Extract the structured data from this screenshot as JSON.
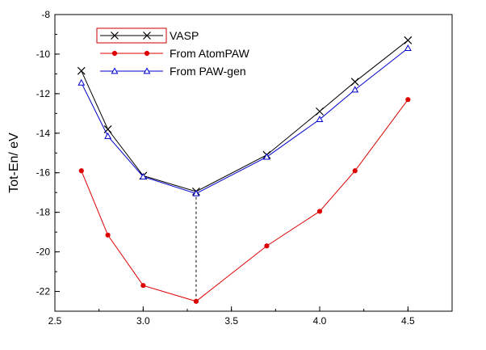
{
  "chart_data": {
    "type": "line",
    "title": "",
    "xlabel": "",
    "ylabel": "Tot-En/ eV",
    "xlim": [
      2.5,
      4.75
    ],
    "ylim": [
      -23,
      -8
    ],
    "xticks": [
      2.5,
      3.0,
      3.5,
      4.0,
      4.5
    ],
    "xtick_labels": [
      "2.5",
      "3.0",
      "3.5",
      "4.0",
      "4.5"
    ],
    "yticks": [
      -22,
      -20,
      -18,
      -16,
      -14,
      -12,
      -10,
      -8
    ],
    "ytick_labels": [
      "-22",
      "-20",
      "-18",
      "-16",
      "-14",
      "-12",
      "-10",
      "-8"
    ],
    "grid": false,
    "legend_position": "top-left",
    "series": [
      {
        "name": "VASP",
        "color": "#000000",
        "marker": "x",
        "x": [
          2.65,
          2.8,
          3.0,
          3.3,
          3.7,
          4.0,
          4.2,
          4.5
        ],
        "y": [
          -10.85,
          -13.8,
          -16.15,
          -16.95,
          -15.1,
          -12.9,
          -11.4,
          -9.3
        ]
      },
      {
        "name": "From AtomPAW",
        "color": "#dd0000",
        "marker": "circle",
        "x": [
          2.65,
          2.8,
          3.0,
          3.3,
          3.7,
          4.0,
          4.2,
          4.5
        ],
        "y": [
          -15.9,
          -19.15,
          -21.7,
          -22.5,
          -19.7,
          -17.95,
          -15.9,
          -12.3
        ]
      },
      {
        "name": "From PAW-gen",
        "color": "#0000cc",
        "marker": "triangle-open",
        "x": [
          2.65,
          2.8,
          3.0,
          3.3,
          3.7,
          4.0,
          4.2,
          4.5
        ],
        "y": [
          -11.45,
          -14.15,
          -16.2,
          -17.05,
          -15.2,
          -13.3,
          -11.8,
          -9.7
        ]
      }
    ],
    "annotations": [
      {
        "type": "vertical-dashed-line",
        "x": 3.3,
        "y_from": -22.5,
        "y_to": -16.95
      }
    ]
  }
}
